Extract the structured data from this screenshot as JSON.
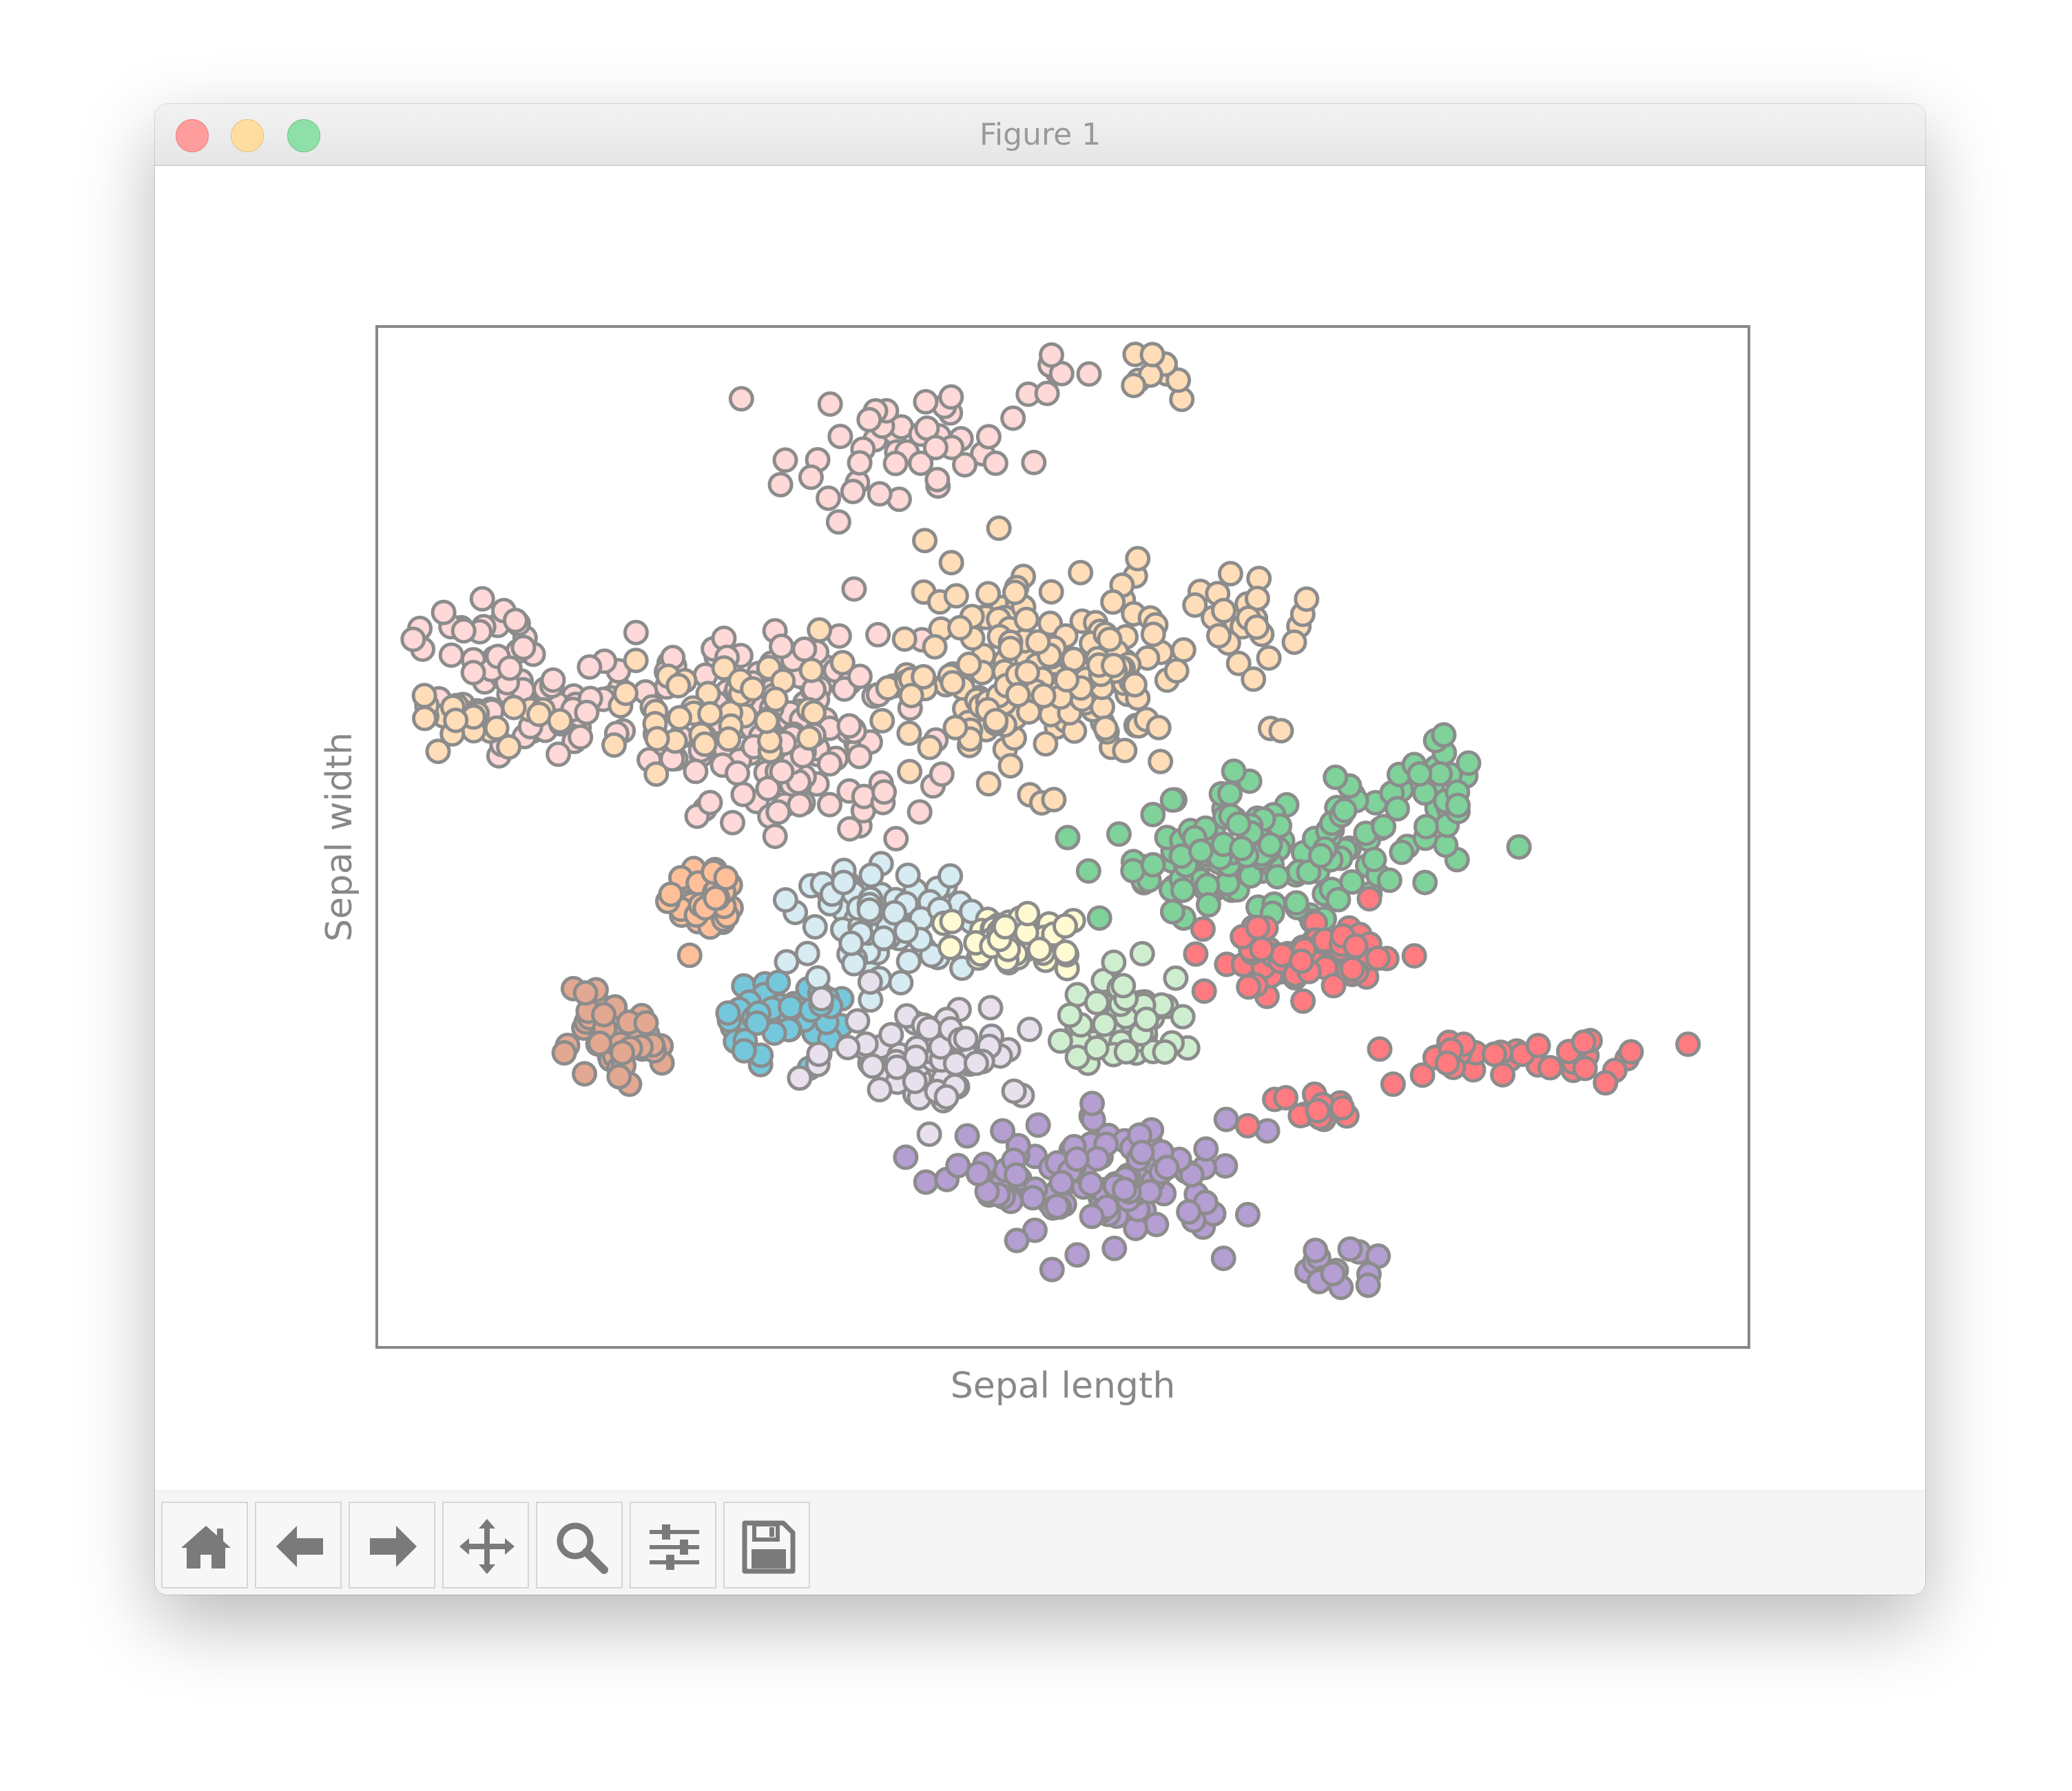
{
  "window": {
    "title": "Figure 1",
    "controls": [
      "close",
      "minimize",
      "maximize"
    ]
  },
  "toolbar": {
    "buttons": [
      {
        "name": "home",
        "icon": "home-icon"
      },
      {
        "name": "back",
        "icon": "arrow-left-icon"
      },
      {
        "name": "forward",
        "icon": "arrow-right-icon"
      },
      {
        "name": "pan",
        "icon": "move-icon"
      },
      {
        "name": "zoom",
        "icon": "magnifier-icon"
      },
      {
        "name": "configure-subplots",
        "icon": "sliders-icon"
      },
      {
        "name": "save",
        "icon": "floppy-disk-icon"
      }
    ]
  },
  "colors": {
    "marker_edge": "#8c8c8c",
    "axes_frame": "#888888",
    "text": "#888888"
  },
  "chart_data": {
    "type": "scatter",
    "title": "",
    "xlabel": "Sepal length",
    "ylabel": "Sepal width",
    "xlim": [
      0,
      100
    ],
    "ylim": [
      0,
      100
    ],
    "ticks": "none",
    "grid": false,
    "legend": "none",
    "series": [
      {
        "color": "#ffd8d8",
        "clusters": [
          [
            30,
            60,
            8,
            8,
            160
          ],
          [
            13,
            64,
            7,
            5,
            55
          ],
          [
            6,
            70,
            4,
            3,
            20
          ],
          [
            38,
            88,
            7,
            5,
            45
          ],
          [
            49,
            95,
            2,
            2,
            7
          ]
        ]
      },
      {
        "color": "#ffddb8",
        "clusters": [
          [
            48,
            66,
            11,
            8,
            200
          ],
          [
            24,
            62,
            5,
            4,
            40
          ],
          [
            8,
            62,
            5,
            2,
            22
          ],
          [
            57,
            95,
            2,
            2,
            10
          ],
          [
            64,
            72,
            4,
            3,
            18
          ]
        ]
      },
      {
        "color": "#ffc099",
        "clusters": [
          [
            24,
            43,
            2,
            3,
            40
          ]
        ]
      },
      {
        "color": "#e3a891",
        "clusters": [
          [
            17,
            30,
            3,
            3,
            55
          ]
        ]
      },
      {
        "color": "#75c8dc",
        "clusters": [
          [
            29,
            32,
            4,
            3,
            50
          ]
        ]
      },
      {
        "color": "#d6ebf2",
        "clusters": [
          [
            37,
            42,
            5,
            4,
            90
          ]
        ]
      },
      {
        "color": "#fffad2",
        "clusters": [
          [
            47,
            40,
            5,
            3,
            45
          ]
        ]
      },
      {
        "color": "#e8e0ed",
        "clusters": [
          [
            40,
            29,
            6,
            4,
            70
          ]
        ]
      },
      {
        "color": "#cfeecf",
        "clusters": [
          [
            55,
            32,
            4,
            4,
            60
          ]
        ]
      },
      {
        "color": "#b49ed2",
        "clusters": [
          [
            53,
            16,
            8,
            5,
            130
          ],
          [
            70,
            8,
            3,
            2,
            15
          ]
        ]
      },
      {
        "color": "#7ed29a",
        "clusters": [
          [
            64,
            48,
            9,
            5,
            150
          ],
          [
            77,
            54,
            4,
            4,
            30
          ]
        ]
      },
      {
        "color": "#ff7b80",
        "clusters": [
          [
            68,
            38,
            6,
            3,
            70
          ],
          [
            84,
            28,
            10,
            2,
            40
          ],
          [
            66,
            23,
            4,
            2,
            15
          ]
        ]
      }
    ]
  }
}
